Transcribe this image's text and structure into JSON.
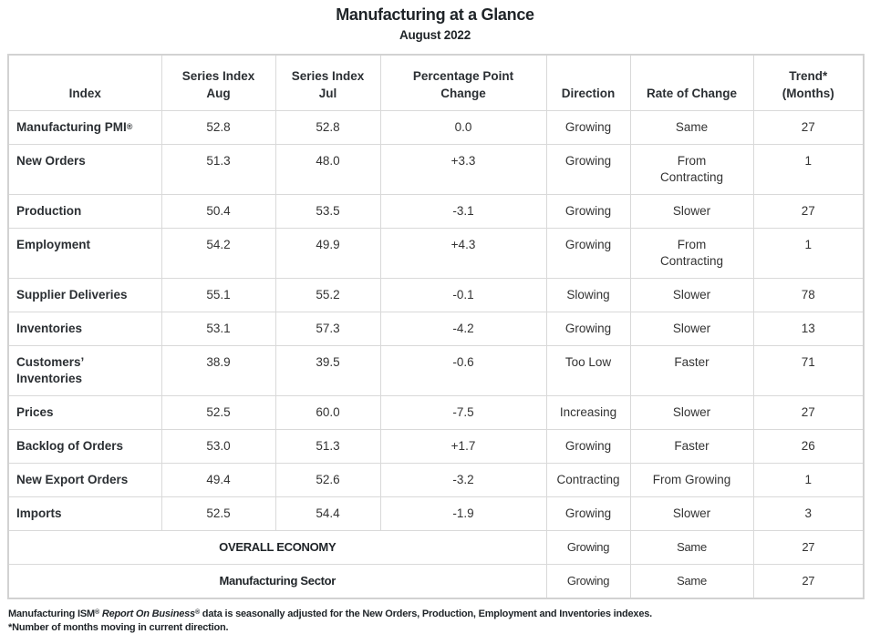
{
  "title": "Manufacturing at a Glance",
  "subtitle": "August 2022",
  "colors": {
    "background": "#ffffff",
    "text": "#333333",
    "heading_text": "#1f2428",
    "grid_border": "#d9d9d9",
    "outer_border": "#d2d2d2"
  },
  "table": {
    "headers": {
      "index": "Index",
      "aug": "Series Index\nAug",
      "jul": "Series Index\nJul",
      "change": "Percentage Point\nChange",
      "direction": "Direction",
      "rate": "Rate of Change",
      "trend": "Trend*\n(Months)"
    },
    "rows": [
      {
        "label": "Manufacturing PMI",
        "sup": "®",
        "aug": "52.8",
        "jul": "52.8",
        "change": "0.0",
        "direction": "Growing",
        "rate": "Same",
        "trend": "27"
      },
      {
        "label": "New Orders",
        "sup": "",
        "aug": "51.3",
        "jul": "48.0",
        "change": "+3.3",
        "direction": "Growing",
        "rate": "From\nContracting",
        "trend": "1"
      },
      {
        "label": "Production",
        "sup": "",
        "aug": "50.4",
        "jul": "53.5",
        "change": "-3.1",
        "direction": "Growing",
        "rate": "Slower",
        "trend": "27"
      },
      {
        "label": "Employment",
        "sup": "",
        "aug": "54.2",
        "jul": "49.9",
        "change": "+4.3",
        "direction": "Growing",
        "rate": "From\nContracting",
        "trend": "1"
      },
      {
        "label": "Supplier Deliveries",
        "sup": "",
        "aug": "55.1",
        "jul": "55.2",
        "change": "-0.1",
        "direction": "Slowing",
        "rate": "Slower",
        "trend": "78"
      },
      {
        "label": "Inventories",
        "sup": "",
        "aug": "53.1",
        "jul": "57.3",
        "change": "-4.2",
        "direction": "Growing",
        "rate": "Slower",
        "trend": "13"
      },
      {
        "label": "Customers’\nInventories",
        "sup": "",
        "aug": "38.9",
        "jul": "39.5",
        "change": "-0.6",
        "direction": "Too Low",
        "rate": "Faster",
        "trend": "71"
      },
      {
        "label": "Prices",
        "sup": "",
        "aug": "52.5",
        "jul": "60.0",
        "change": "-7.5",
        "direction": "Increasing",
        "rate": "Slower",
        "trend": "27"
      },
      {
        "label": "Backlog of Orders",
        "sup": "",
        "aug": "53.0",
        "jul": "51.3",
        "change": "+1.7",
        "direction": "Growing",
        "rate": "Faster",
        "trend": "26"
      },
      {
        "label": "New Export Orders",
        "sup": "",
        "aug": "49.4",
        "jul": "52.6",
        "change": "-3.2",
        "direction": "Contracting",
        "rate": "From Growing",
        "trend": "1"
      },
      {
        "label": "Imports",
        "sup": "",
        "aug": "52.5",
        "jul": "54.4",
        "change": "-1.9",
        "direction": "Growing",
        "rate": "Slower",
        "trend": "3"
      }
    ],
    "summary_rows": [
      {
        "label": "OVERALL ECONOMY",
        "direction": "Growing",
        "rate": "Same",
        "trend": "27"
      },
      {
        "label": "Manufacturing Sector",
        "direction": "Growing",
        "rate": "Same",
        "trend": "27"
      }
    ]
  },
  "footnotes": {
    "note1_part1": "Manufacturing ISM",
    "note1_sup1": "®",
    "note1_part2": " Report On Business",
    "note1_sup2": "®",
    "note1_part3": " data is seasonally adjusted for the New Orders, Production, Employment and Inventories indexes.",
    "note2": "*Number of months moving in current direction."
  }
}
